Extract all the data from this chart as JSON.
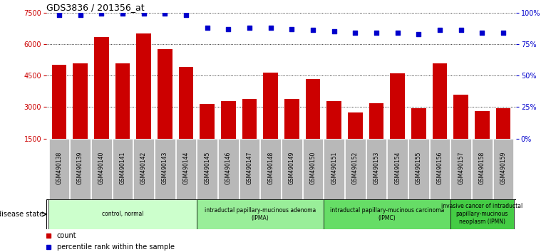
{
  "title": "GDS3836 / 201356_at",
  "samples": [
    "GSM490138",
    "GSM490139",
    "GSM490140",
    "GSM490141",
    "GSM490142",
    "GSM490143",
    "GSM490144",
    "GSM490145",
    "GSM490146",
    "GSM490147",
    "GSM490148",
    "GSM490149",
    "GSM490150",
    "GSM490151",
    "GSM490152",
    "GSM490153",
    "GSM490154",
    "GSM490155",
    "GSM490156",
    "GSM490157",
    "GSM490158",
    "GSM490159"
  ],
  "counts": [
    5000,
    5100,
    6350,
    5100,
    6500,
    5750,
    4900,
    3150,
    3300,
    3400,
    4650,
    3400,
    4350,
    3300,
    2750,
    3200,
    4600,
    2950,
    5100,
    3600,
    2800,
    2950
  ],
  "percentiles": [
    98,
    98,
    99,
    99,
    99,
    99,
    98,
    88,
    87,
    88,
    88,
    87,
    86,
    85,
    84,
    84,
    84,
    83,
    86,
    86,
    84,
    84
  ],
  "ylim_left": [
    1500,
    7500
  ],
  "ylim_right": [
    0,
    100
  ],
  "yticks_left": [
    1500,
    3000,
    4500,
    6000,
    7500
  ],
  "yticks_right": [
    0,
    25,
    50,
    75,
    100
  ],
  "bar_color": "#cc0000",
  "scatter_color": "#0000cc",
  "grid_color": "#000000",
  "bg_color": "#ffffff",
  "tick_area_color": "#b8b8b8",
  "disease_groups": [
    {
      "label": "control, normal",
      "start": 0,
      "end": 7,
      "color": "#ccffcc"
    },
    {
      "label": "intraductal papillary-mucinous adenoma\n(IPMA)",
      "start": 7,
      "end": 13,
      "color": "#99ee99"
    },
    {
      "label": "intraductal papillary-mucinous carcinoma\n(IPMC)",
      "start": 13,
      "end": 19,
      "color": "#66dd66"
    },
    {
      "label": "invasive cancer of intraductal\npapillary-mucinous\nneoplasm (IPMN)",
      "start": 19,
      "end": 22,
      "color": "#44cc44"
    }
  ],
  "disease_state_label": "disease state",
  "legend_count": "count",
  "legend_percentile": "percentile rank within the sample"
}
